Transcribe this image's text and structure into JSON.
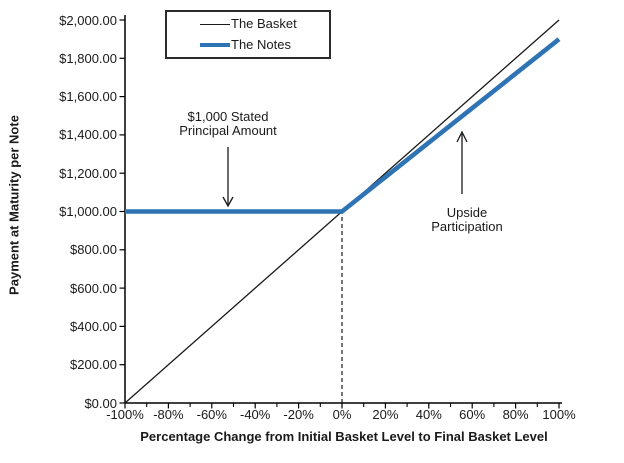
{
  "chart_data": {
    "type": "line",
    "title": "",
    "xlabel": "Percentage Change from Initial Basket Level to Final Basket Level",
    "ylabel": "Payment at Maturity per Note",
    "xlim": [
      -100,
      100
    ],
    "ylim": [
      0,
      2000
    ],
    "grid": false,
    "legend_position": "top-inside",
    "x_minor_tick_step": 10,
    "x_ticks": [
      {
        "value": -100,
        "label": "-100%"
      },
      {
        "value": -80,
        "label": "-80%"
      },
      {
        "value": -60,
        "label": "-60%"
      },
      {
        "value": -40,
        "label": "-40%"
      },
      {
        "value": -20,
        "label": "-20%"
      },
      {
        "value": 0,
        "label": "0%"
      },
      {
        "value": 20,
        "label": "20%"
      },
      {
        "value": 40,
        "label": "40%"
      },
      {
        "value": 60,
        "label": "60%"
      },
      {
        "value": 80,
        "label": "80%"
      },
      {
        "value": 100,
        "label": "100%"
      }
    ],
    "y_ticks": [
      {
        "value": 0,
        "label": "$0.00"
      },
      {
        "value": 200,
        "label": "$200.00"
      },
      {
        "value": 400,
        "label": "$400.00"
      },
      {
        "value": 600,
        "label": "$600.00"
      },
      {
        "value": 800,
        "label": "$800.00"
      },
      {
        "value": 1000,
        "label": "$1,000.00"
      },
      {
        "value": 1200,
        "label": "$1,200.00"
      },
      {
        "value": 1400,
        "label": "$1,400.00"
      },
      {
        "value": 1600,
        "label": "$1,600.00"
      },
      {
        "value": 1800,
        "label": "$1,800.00"
      },
      {
        "value": 2000,
        "label": "$2,000.00"
      }
    ],
    "series": [
      {
        "name": "The Basket",
        "color": "#1a1a1a",
        "stroke_width": 1.3,
        "points": [
          [
            -100,
            0
          ],
          [
            100,
            2000
          ]
        ]
      },
      {
        "name": "The Notes",
        "color": "#2E74B5",
        "stroke_width": 4.6,
        "points": [
          [
            -100,
            1000
          ],
          [
            0,
            1000
          ],
          [
            100,
            1900
          ]
        ]
      }
    ],
    "reference_lines": [
      {
        "orientation": "vertical",
        "style": "dashed",
        "x": 0,
        "y_from": 0,
        "y_to": 1000,
        "color": "#2b2b2b"
      }
    ],
    "annotations": [
      {
        "text": "$1,000 Stated Principal Amount",
        "arrow": "down",
        "points_to": "The Notes flat segment at $1,000"
      },
      {
        "text": "Upside Participation",
        "arrow": "up",
        "points_to": "The Notes rising segment above 0%"
      }
    ]
  },
  "annotation_text": {
    "principal": {
      "line1": "$1,000 Stated",
      "line2": "Principal Amount"
    },
    "upside": {
      "line1": "Upside",
      "line2": "Participation"
    }
  },
  "colors": {
    "notes_blue": "#2E74B5",
    "basket_black": "#1a1a1a",
    "axis_black": "#000000"
  }
}
